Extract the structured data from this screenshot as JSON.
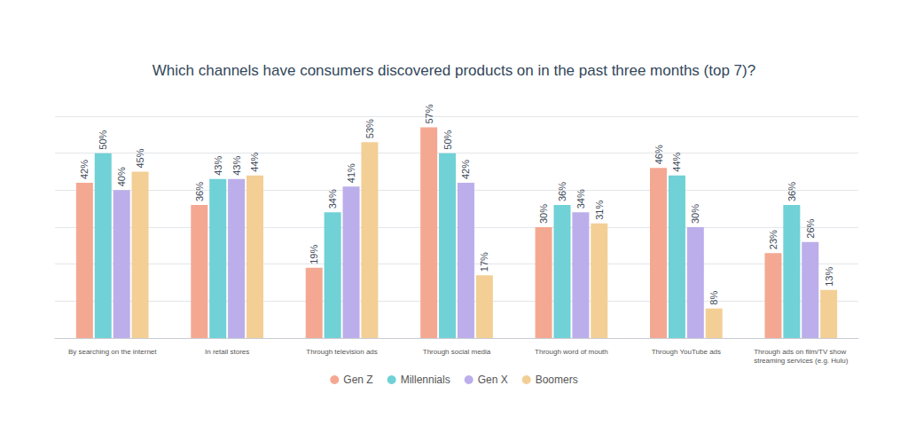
{
  "chart_data": {
    "type": "bar",
    "title": "Which channels have consumers discovered products on in the past three months (top 7)?",
    "categories": [
      "By searching on the internet",
      "In retail stores",
      "Through television ads",
      "Through social media",
      "Through word of mouth",
      "Through YouTube ads",
      "Through ads on film/TV show streaming services (e.g. Hulu)"
    ],
    "series": [
      {
        "name": "Gen Z",
        "color": "#f4a892",
        "values": [
          42,
          36,
          19,
          57,
          30,
          46,
          23
        ],
        "value_labels": [
          "42%",
          "36%",
          "19%",
          "57%",
          "30%",
          "46%",
          "23%"
        ]
      },
      {
        "name": "Millennials",
        "color": "#70d1d6",
        "values": [
          50,
          43,
          34,
          50,
          36,
          44,
          36
        ],
        "value_labels": [
          "50%",
          "43%",
          "34%",
          "50%",
          "36%",
          "44%",
          "36%"
        ]
      },
      {
        "name": "Gen X",
        "color": "#bcaeea",
        "values": [
          40,
          43,
          41,
          42,
          34,
          30,
          26
        ],
        "value_labels": [
          "40%",
          "43%",
          "41%",
          "42%",
          "34%",
          "30%",
          "26%"
        ]
      },
      {
        "name": "Boomers",
        "color": "#f3cf96",
        "values": [
          45,
          44,
          53,
          17,
          31,
          8,
          13
        ],
        "value_labels": [
          "45%",
          "44%",
          "53%",
          "17%",
          "31%",
          "8%",
          "13%"
        ]
      }
    ],
    "ylim": [
      0,
      60
    ],
    "yticks": [
      0,
      10,
      20,
      30,
      40,
      50,
      60
    ],
    "grid": true,
    "legend": "bottom",
    "data_labels": true,
    "tick_labels": "x"
  }
}
